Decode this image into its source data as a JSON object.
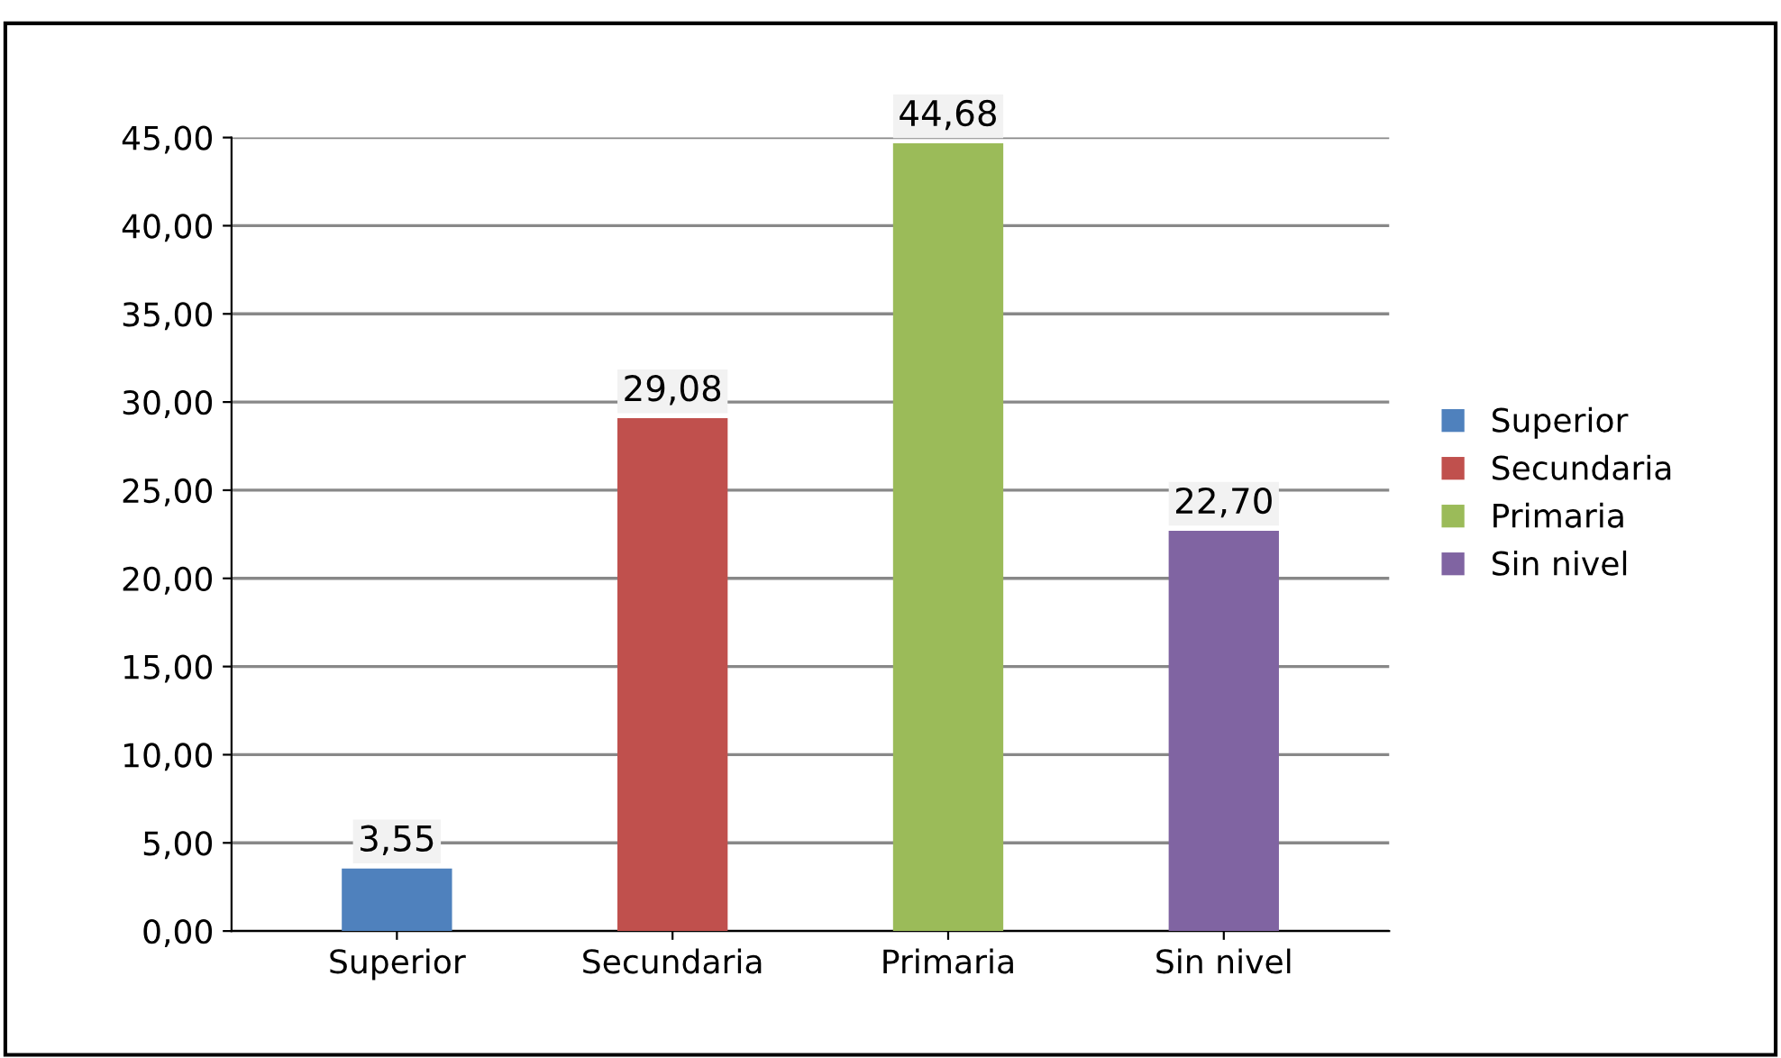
{
  "chart_data": {
    "type": "bar",
    "categories": [
      "Superior",
      "Secundaria",
      "Primaria",
      "Sin nivel"
    ],
    "series": [
      {
        "name": "Superior",
        "color": "#4f81bd",
        "values": [
          3.55,
          null,
          null,
          null
        ],
        "value_labels": [
          "3,55",
          null,
          null,
          null
        ]
      },
      {
        "name": "Secundaria",
        "color": "#c0504d",
        "values": [
          null,
          29.08,
          null,
          null
        ],
        "value_labels": [
          null,
          "29,08",
          null,
          null
        ]
      },
      {
        "name": "Primaria",
        "color": "#9bbb59",
        "values": [
          null,
          null,
          44.68,
          null
        ],
        "value_labels": [
          null,
          null,
          "44,68",
          null
        ]
      },
      {
        "name": "Sin nivel",
        "color": "#8064a2",
        "values": [
          null,
          null,
          null,
          22.7
        ],
        "value_labels": [
          null,
          null,
          null,
          "22,70"
        ]
      }
    ],
    "ylim": [
      0,
      45
    ],
    "yticks": [
      {
        "value": 0,
        "label": "0,00"
      },
      {
        "value": 5,
        "label": "5,00"
      },
      {
        "value": 10,
        "label": "10,00"
      },
      {
        "value": 15,
        "label": "15,00"
      },
      {
        "value": 20,
        "label": "20,00"
      },
      {
        "value": 25,
        "label": "25,00"
      },
      {
        "value": 30,
        "label": "30,00"
      },
      {
        "value": 35,
        "label": "35,00"
      },
      {
        "value": 40,
        "label": "40,00"
      },
      {
        "value": 45,
        "label": "45,00"
      }
    ],
    "grid": "y",
    "legend": "right"
  }
}
